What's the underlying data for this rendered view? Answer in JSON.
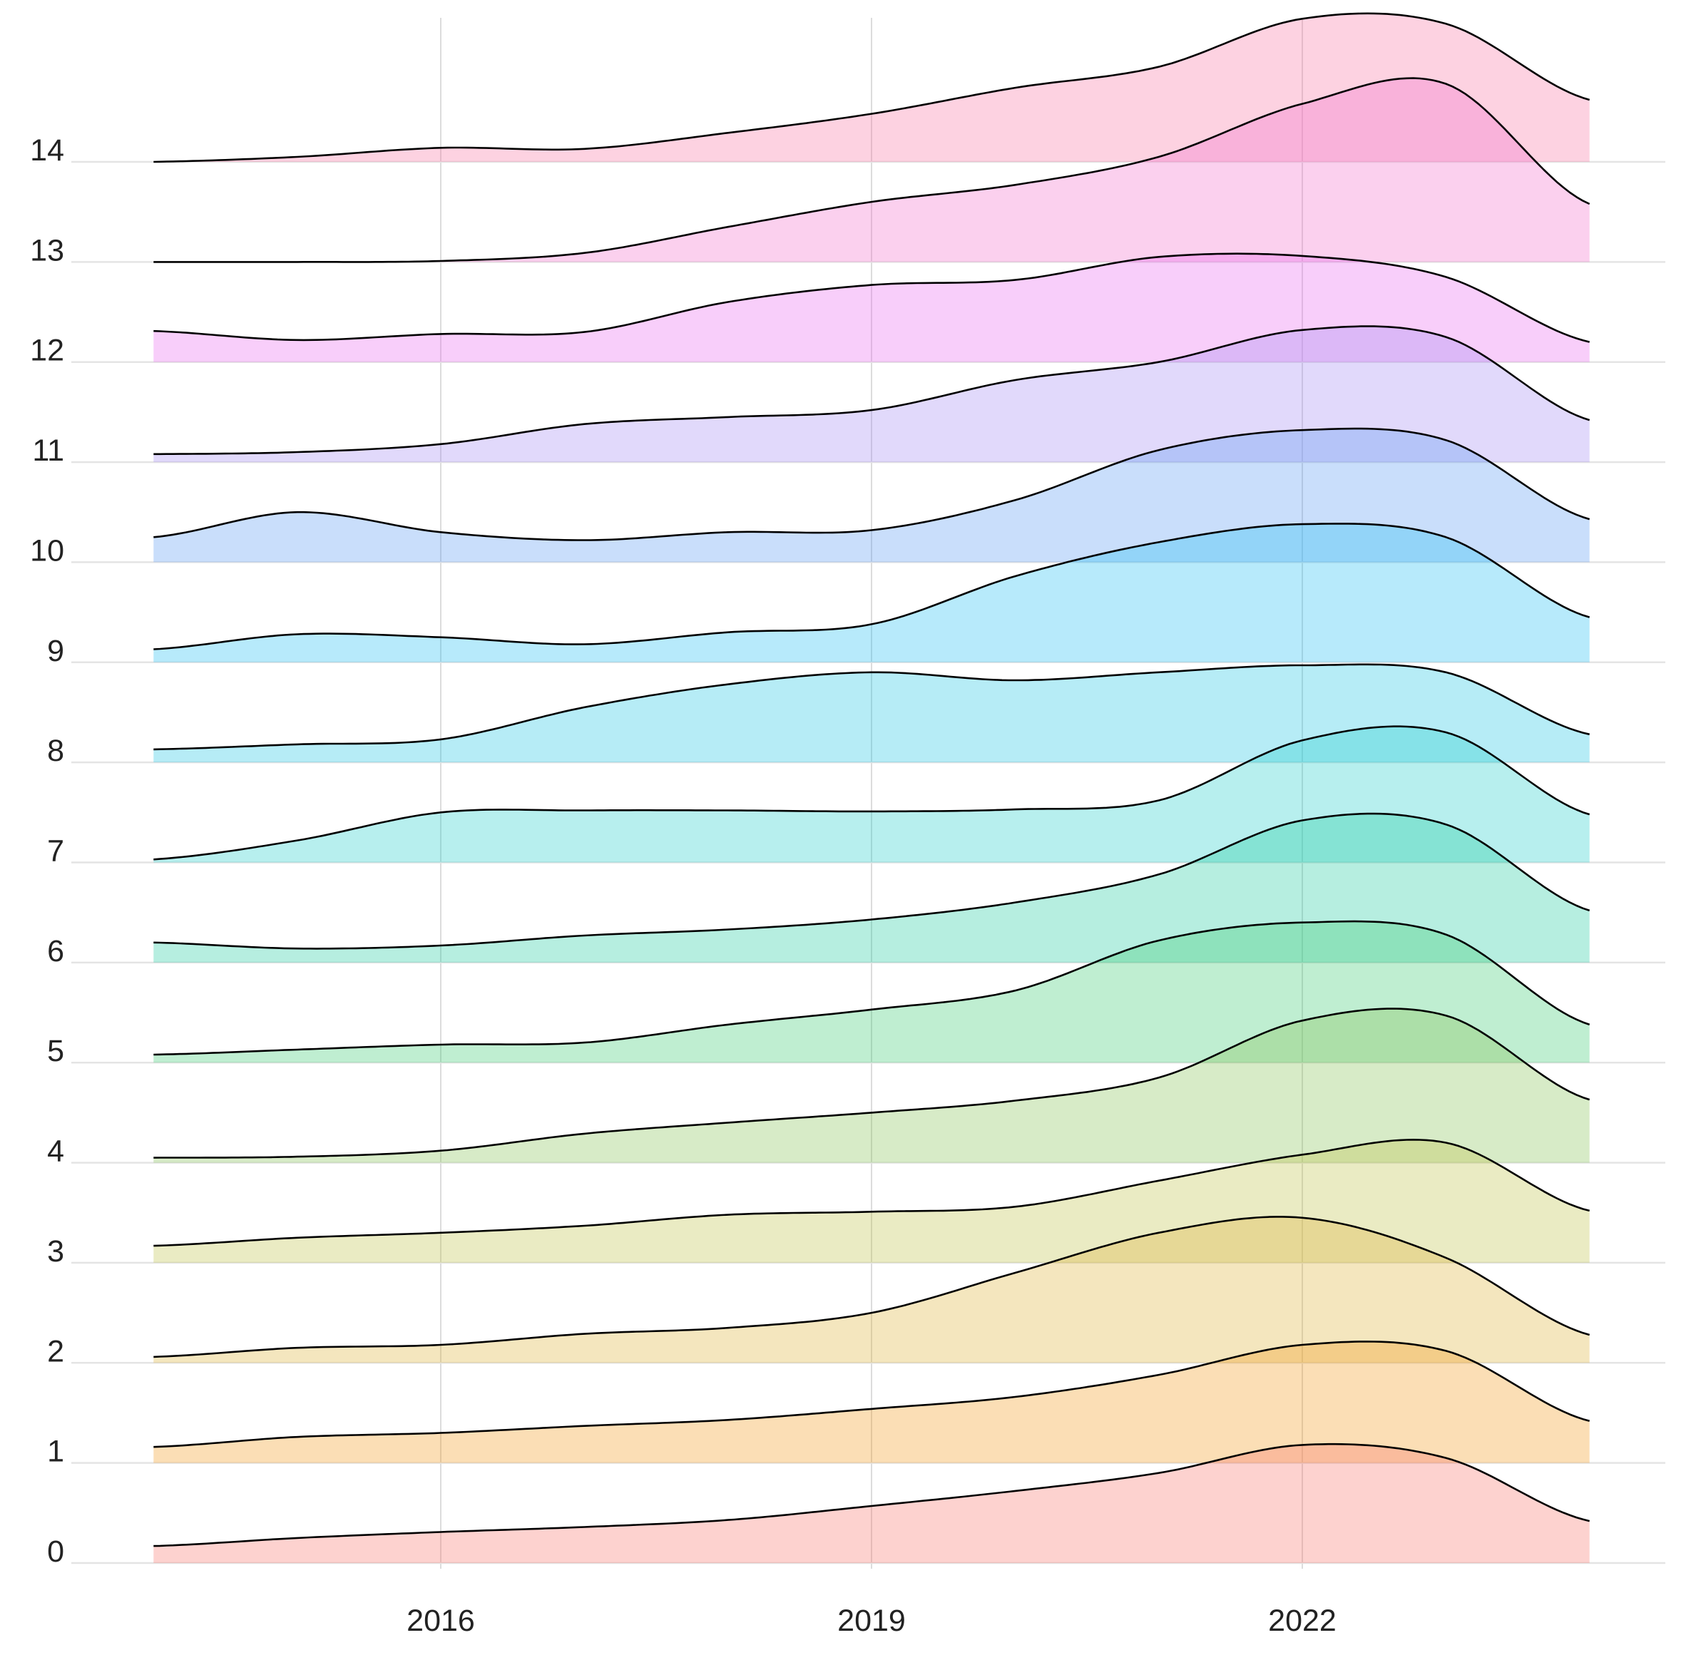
{
  "chart_data": {
    "type": "ridgeline",
    "title": "",
    "xlabel": "",
    "ylabel": "",
    "x_ticks": [
      2016,
      2019,
      2022
    ],
    "x_range": [
      2013.3,
      2024.3
    ],
    "y_categories": [
      "0",
      "1",
      "2",
      "3",
      "4",
      "5",
      "6",
      "7",
      "8",
      "9",
      "10",
      "11",
      "12",
      "13",
      "14"
    ],
    "grid": "vertical major lines at x ticks; horizontal baseline per ridge",
    "legend": "none",
    "ridge_scale_note": "height in category units above each ridge baseline",
    "x_sample_years": [
      2014,
      2015,
      2016,
      2017,
      2018,
      2019,
      2020,
      2021,
      2022,
      2023,
      2024
    ],
    "series": [
      {
        "name": "0",
        "color": "#F8766D",
        "heights": [
          0.17,
          0.25,
          0.31,
          0.36,
          0.43,
          0.57,
          0.72,
          0.9,
          1.18,
          1.05,
          0.42
        ]
      },
      {
        "name": "1",
        "color": "#F39B1F",
        "heights": [
          0.16,
          0.26,
          0.3,
          0.37,
          0.43,
          0.54,
          0.66,
          0.88,
          1.18,
          1.12,
          0.42
        ]
      },
      {
        "name": "2",
        "color": "#DDB23A",
        "heights": [
          0.06,
          0.15,
          0.18,
          0.29,
          0.35,
          0.5,
          0.9,
          1.3,
          1.45,
          1.05,
          0.28
        ]
      },
      {
        "name": "3",
        "color": "#BEC24A",
        "heights": [
          0.17,
          0.25,
          0.3,
          0.37,
          0.48,
          0.51,
          0.56,
          0.82,
          1.08,
          1.2,
          0.52
        ]
      },
      {
        "name": "4",
        "color": "#86C256",
        "heights": [
          0.05,
          0.06,
          0.12,
          0.29,
          0.4,
          0.5,
          0.62,
          0.85,
          1.42,
          1.47,
          0.63
        ]
      },
      {
        "name": "5",
        "color": "#3CCB74",
        "heights": [
          0.08,
          0.13,
          0.18,
          0.2,
          0.38,
          0.53,
          0.72,
          1.22,
          1.4,
          1.28,
          0.38
        ]
      },
      {
        "name": "6",
        "color": "#22CCA2",
        "heights": [
          0.2,
          0.14,
          0.17,
          0.27,
          0.33,
          0.43,
          0.6,
          0.88,
          1.42,
          1.38,
          0.52
        ]
      },
      {
        "name": "7",
        "color": "#24CFCB",
        "heights": [
          0.03,
          0.22,
          0.5,
          0.52,
          0.52,
          0.51,
          0.53,
          0.62,
          1.22,
          1.3,
          0.48
        ]
      },
      {
        "name": "8",
        "color": "#22C5E3",
        "heights": [
          0.13,
          0.18,
          0.23,
          0.55,
          0.78,
          0.9,
          0.82,
          0.9,
          0.97,
          0.9,
          0.28
        ]
      },
      {
        "name": "9",
        "color": "#25BFF2",
        "heights": [
          0.13,
          0.28,
          0.25,
          0.18,
          0.3,
          0.38,
          0.86,
          1.2,
          1.38,
          1.25,
          0.45
        ]
      },
      {
        "name": "10",
        "color": "#5B9BF2",
        "heights": [
          0.25,
          0.5,
          0.3,
          0.22,
          0.3,
          0.32,
          0.62,
          1.12,
          1.32,
          1.22,
          0.43
        ]
      },
      {
        "name": "11",
        "color": "#A58BF2",
        "heights": [
          0.08,
          0.1,
          0.18,
          0.38,
          0.45,
          0.52,
          0.82,
          1.0,
          1.32,
          1.25,
          0.42
        ]
      },
      {
        "name": "12",
        "color": "#EA6BF0",
        "heights": [
          0.31,
          0.22,
          0.28,
          0.3,
          0.6,
          0.77,
          0.82,
          1.05,
          1.06,
          0.85,
          0.2
        ]
      },
      {
        "name": "13",
        "color": "#F270CB",
        "heights": [
          0.0,
          0.0,
          0.01,
          0.09,
          0.35,
          0.6,
          0.77,
          1.05,
          1.58,
          1.78,
          0.58
        ]
      },
      {
        "name": "14",
        "color": "#F875A4",
        "heights": [
          0.0,
          0.05,
          0.14,
          0.13,
          0.29,
          0.48,
          0.74,
          0.95,
          1.43,
          1.38,
          0.62
        ]
      }
    ]
  }
}
